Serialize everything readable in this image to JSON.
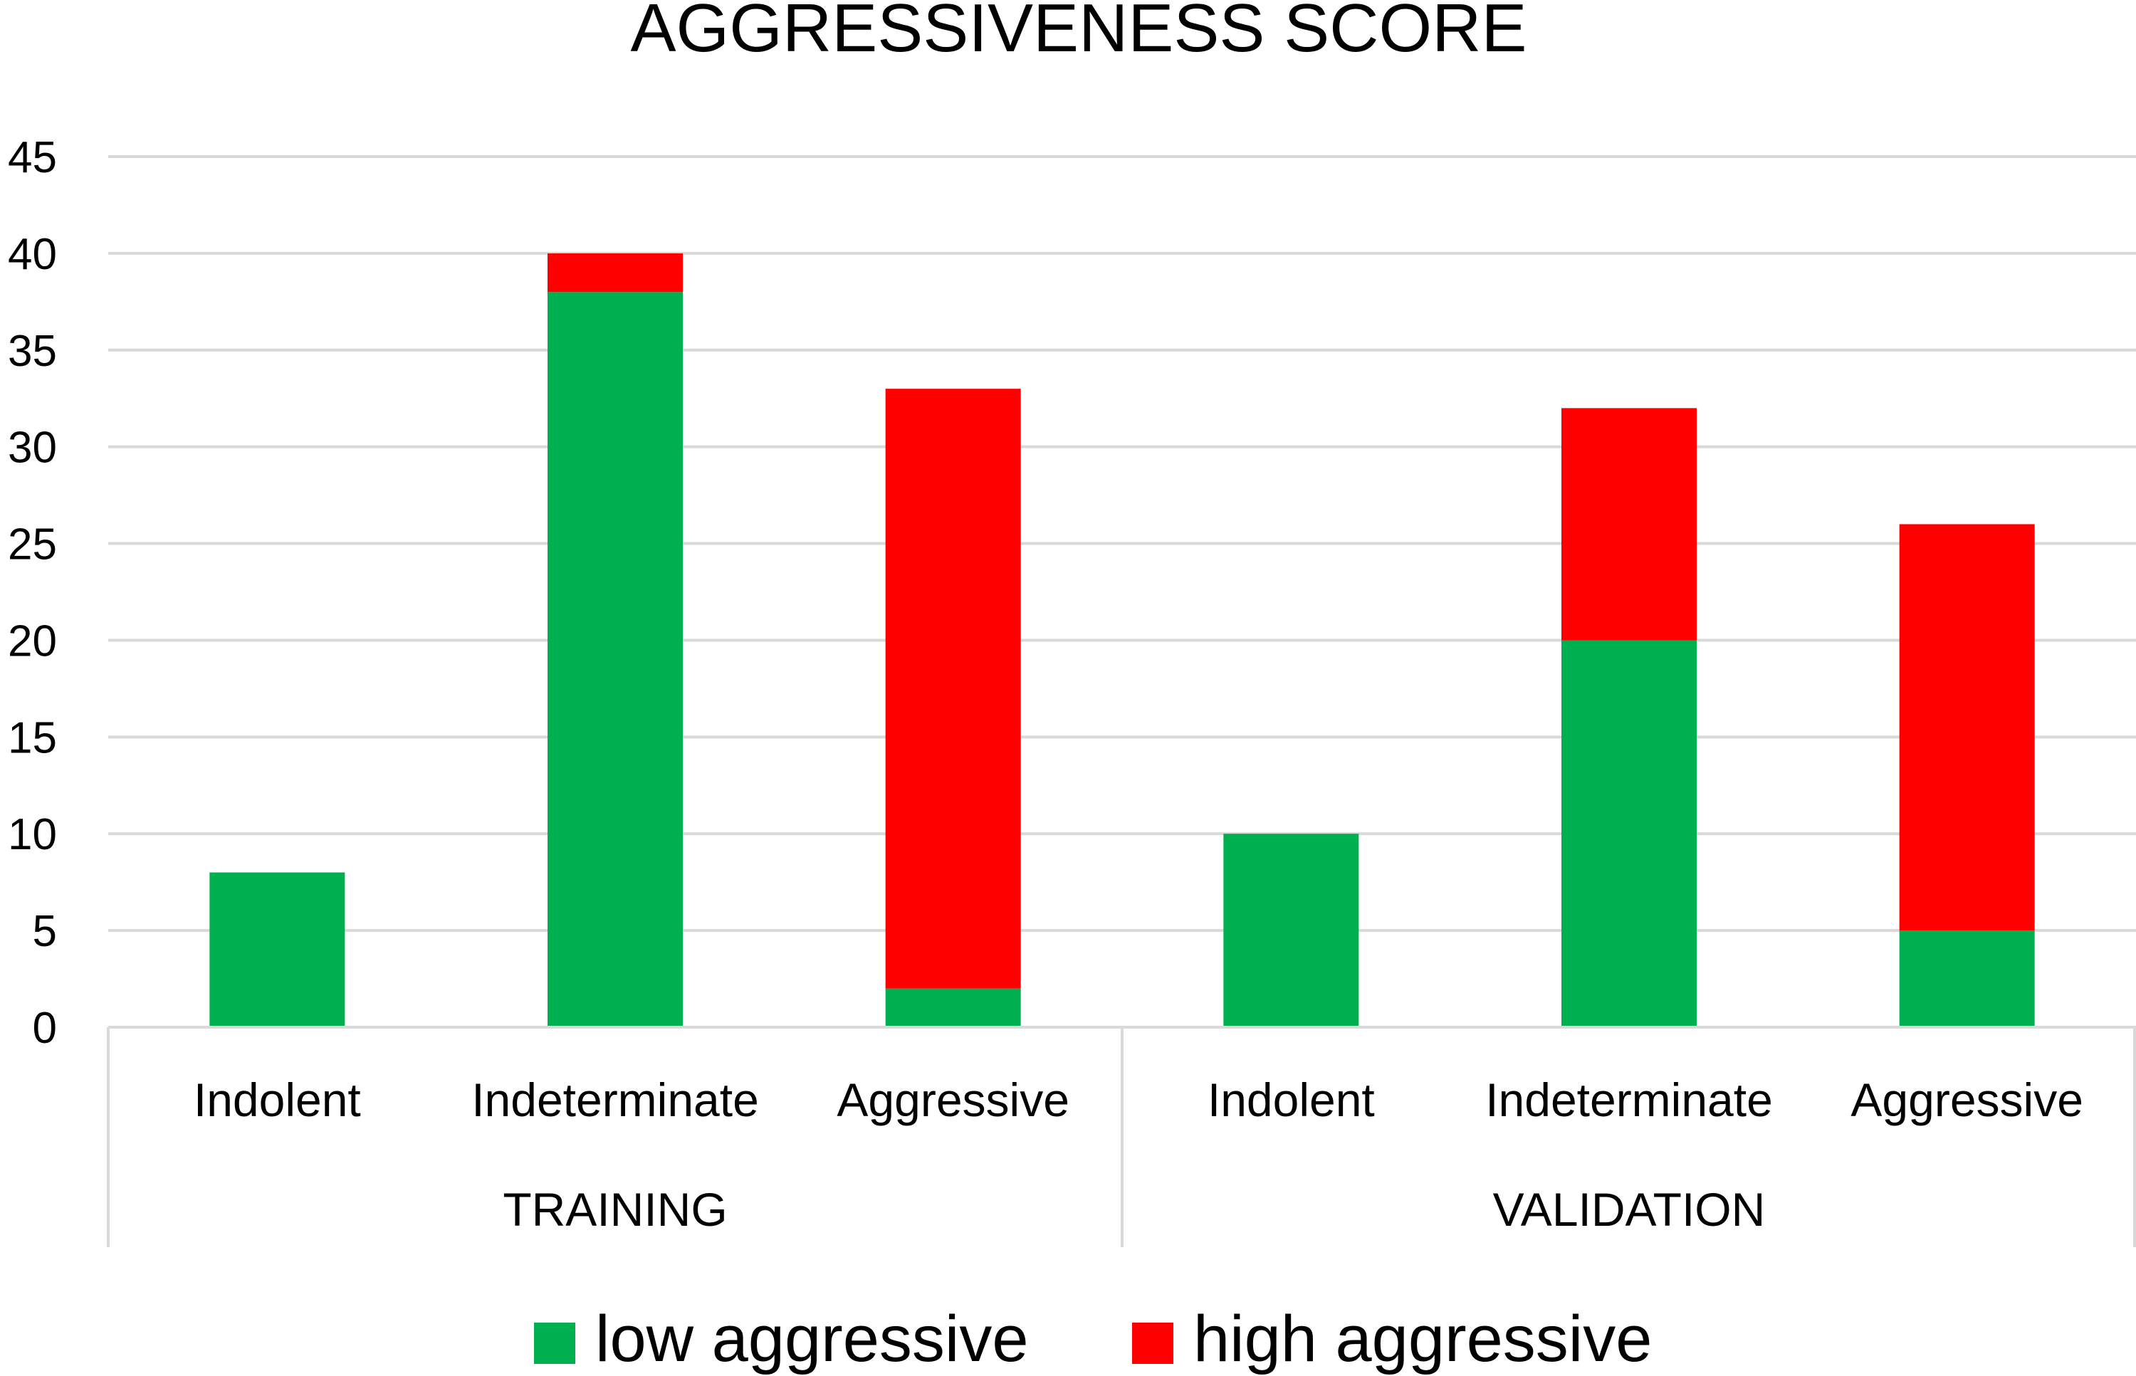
{
  "chart_data": {
    "type": "bar",
    "stacked": true,
    "title": "AGGRESSIVENESS SCORE",
    "xlabel": "",
    "ylabel": "",
    "ylim": [
      0,
      45
    ],
    "yticks": [
      0,
      5,
      10,
      15,
      20,
      25,
      30,
      35,
      40,
      45
    ],
    "grid": true,
    "legend_position": "bottom",
    "groups": [
      {
        "label": "TRAINING",
        "categories": [
          "Indolent",
          "Indeterminate",
          "Aggressive"
        ]
      },
      {
        "label": "VALIDATION",
        "categories": [
          "Indolent",
          "Indeterminate",
          "Aggressive"
        ]
      }
    ],
    "categories": [
      "Indolent",
      "Indeterminate",
      "Aggressive",
      "Indolent",
      "Indeterminate",
      "Aggressive"
    ],
    "series": [
      {
        "name": "low aggressive",
        "color": "#00b050",
        "values": [
          8,
          38,
          2,
          10,
          20,
          5
        ]
      },
      {
        "name": "high aggressive",
        "color": "#ff0000",
        "values": [
          0,
          2,
          31,
          0,
          12,
          21
        ]
      }
    ]
  }
}
